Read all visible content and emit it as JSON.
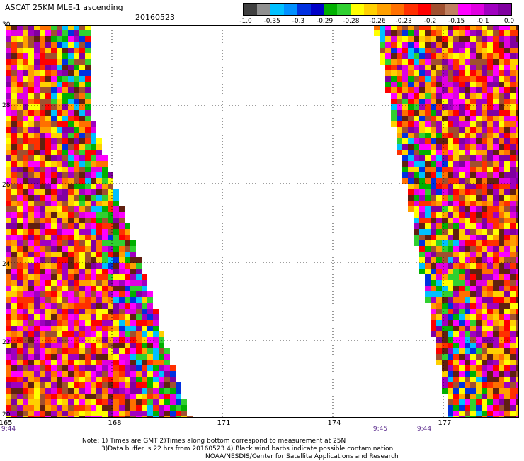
{
  "header": {
    "title": "ASCAT 25KM MLE-1 ascending",
    "date": "20160523"
  },
  "colorbar": {
    "colors": [
      "#404040",
      "#909090",
      "#00c0ff",
      "#0090ff",
      "#0030e0",
      "#0000c8",
      "#00b000",
      "#30d030",
      "#ffff00",
      "#ffd000",
      "#ffa000",
      "#ff7000",
      "#ff3000",
      "#ff0000",
      "#a05030",
      "#c08060",
      "#ff00ff",
      "#e000e0",
      "#a000c0",
      "#8000a0"
    ],
    "labels": [
      "-1.0",
      "-0.35",
      "-0.3",
      "-0.29",
      "-0.28",
      "-0.26",
      "-0.23",
      "-0.2",
      "-0.15",
      "-0.1",
      "0.0"
    ]
  },
  "map": {
    "lat_labels": [
      "30",
      "28",
      "26",
      "24",
      "22",
      "20"
    ],
    "lon_labels": [
      "165",
      "168",
      "171",
      "174",
      "177"
    ],
    "time_labels": [
      "9:44",
      "9:45",
      "9:44"
    ],
    "palette": [
      "#ff0000",
      "#ff3000",
      "#ff7000",
      "#ffa000",
      "#ffd000",
      "#ffff00",
      "#ff00ff",
      "#e000e0",
      "#a000c0",
      "#8000a0",
      "#a05030",
      "#602010",
      "#0030e0",
      "#00c0ff",
      "#00b000",
      "#30d030"
    ]
  },
  "notes": {
    "line1": "Note: 1) Times are GMT 2)Times along bottom correspond to measurement at 25N",
    "line2": "3)Data buffer is 22 hrs from 20160523 4) Black wind barbs indicate possible contamination",
    "line3": "NOAA/NESDIS/Center for Satellite Applications and Research"
  }
}
